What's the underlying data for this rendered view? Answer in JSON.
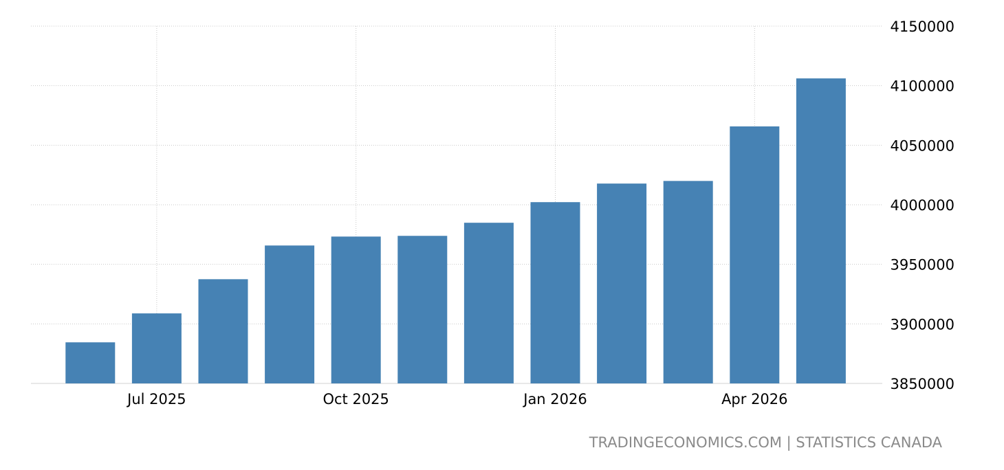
{
  "chart_data": {
    "type": "bar",
    "x": [
      "Jun 2025",
      "Jul 2025",
      "Aug 2025",
      "Sep 2025",
      "Oct 2025",
      "Nov 2025",
      "Dec 2025",
      "Jan 2026",
      "Feb 2026",
      "Mar 2026",
      "Apr 2026",
      "May 2026"
    ],
    "values": [
      3884500,
      3908800,
      3937500,
      3965800,
      3973300,
      3973900,
      3984900,
      4002200,
      4017800,
      4020000,
      4065800,
      4106100
    ],
    "ylim": [
      3850000,
      4150000
    ],
    "y_ticks": [
      3850000,
      3900000,
      3950000,
      4000000,
      4050000,
      4100000,
      4150000
    ],
    "x_tick_labels": [
      "Jul 2025",
      "Oct 2025",
      "Jan 2026",
      "Apr 2026"
    ],
    "bar_color": "#4682b4",
    "grid": true,
    "y_axis_position": "right"
  },
  "source": {
    "label": "TRADINGECONOMICS.COM | STATISTICS CANADA"
  }
}
